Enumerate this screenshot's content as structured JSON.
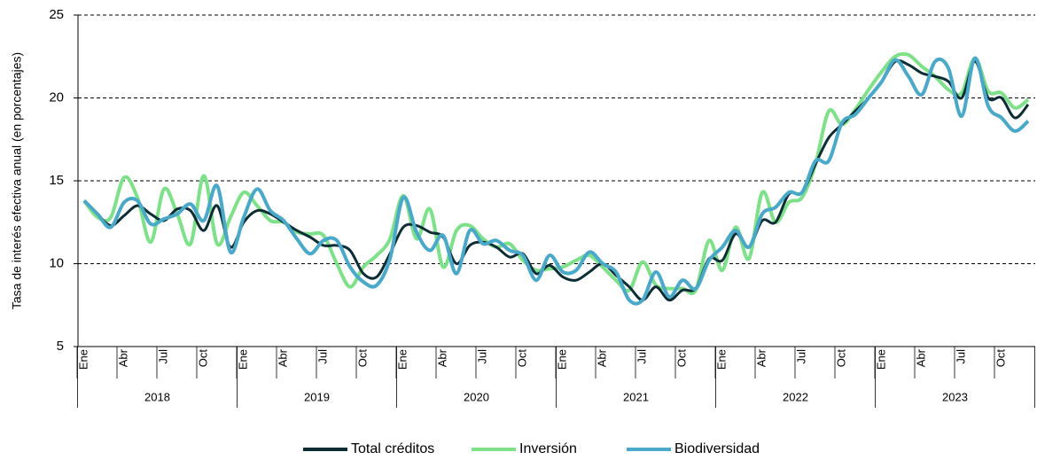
{
  "chart_data": {
    "type": "line",
    "y_label": "Tasa de interés efectiva anual (en porcentajes)",
    "categories": [
      "Ene",
      null,
      null,
      "Abr",
      null,
      null,
      "Jul",
      null,
      null,
      "Oct",
      null,
      null,
      "Ene",
      null,
      null,
      "Abr",
      null,
      null,
      "Jul",
      null,
      null,
      "Oct",
      null,
      null,
      "Ene",
      null,
      null,
      "Abr",
      null,
      null,
      "Jul",
      null,
      null,
      "Oct",
      null,
      null,
      "Ene",
      null,
      null,
      "Abr",
      null,
      null,
      "Jul",
      null,
      null,
      "Oct",
      null,
      null,
      "Ene",
      null,
      null,
      "Abr",
      null,
      null,
      "Jul",
      null,
      null,
      "Oct",
      null,
      null,
      "Ene",
      null,
      null,
      "Abr",
      null,
      null,
      "Jul",
      null,
      null,
      "Oct",
      null,
      null
    ],
    "years": [
      "2018",
      "2019",
      "2020",
      "2021",
      "2022",
      "2023"
    ],
    "ylim": [
      5,
      25
    ],
    "yticks": [
      5,
      10,
      15,
      20,
      25
    ],
    "grid": true,
    "legend": "bottom",
    "series": [
      {
        "name": "Total créditos",
        "color": "#0d2d35",
        "values": [
          13.8,
          13.0,
          12.3,
          12.9,
          13.5,
          13.0,
          12.6,
          13.3,
          13.2,
          12.0,
          13.5,
          11.0,
          12.5,
          13.2,
          13.0,
          12.5,
          12.0,
          11.6,
          11.1,
          11.1,
          10.8,
          9.4,
          9.2,
          10.6,
          12.2,
          12.3,
          11.9,
          11.6,
          10.0,
          11.1,
          11.3,
          11.0,
          10.4,
          10.6,
          9.4,
          9.9,
          9.2,
          9.0,
          9.5,
          10.0,
          9.3,
          8.6,
          7.8,
          8.6,
          7.8,
          8.4,
          8.5,
          10.3,
          10.2,
          11.8,
          11.0,
          12.6,
          12.5,
          14.2,
          14.3,
          16.0,
          17.6,
          18.4,
          19.2,
          20.0,
          21.0,
          22.2,
          22.0,
          21.5,
          21.3,
          21.0,
          20.0,
          22.2,
          20.0,
          20.0,
          18.8,
          19.6
        ]
      },
      {
        "name": "Inversión",
        "color": "#7fe08a",
        "values": [
          13.8,
          12.8,
          12.8,
          15.2,
          14.0,
          11.3,
          14.5,
          13.0,
          11.2,
          15.3,
          11.2,
          12.8,
          14.3,
          13.5,
          12.6,
          12.5,
          11.9,
          11.8,
          11.7,
          10.0,
          8.6,
          9.8,
          10.5,
          11.5,
          14.1,
          11.5,
          13.3,
          9.8,
          12.0,
          12.3,
          11.5,
          11.0,
          11.2,
          10.2,
          9.6,
          9.7,
          9.8,
          10.2,
          10.5,
          9.8,
          9.0,
          8.4,
          10.1,
          8.7,
          8.5,
          8.5,
          8.4,
          11.4,
          9.6,
          12.2,
          10.3,
          14.3,
          12.5,
          13.7,
          14.0,
          16.0,
          19.2,
          18.4,
          19.3,
          20.5,
          21.6,
          22.5,
          22.6,
          21.9,
          21.3,
          20.5,
          20.3,
          22.4,
          20.4,
          20.3,
          19.4,
          19.9
        ]
      },
      {
        "name": "Biodiversidad",
        "color": "#4aa8c8",
        "values": [
          13.8,
          13.0,
          12.2,
          13.7,
          13.8,
          12.4,
          12.7,
          13.0,
          13.6,
          12.6,
          14.7,
          10.7,
          12.8,
          14.5,
          13.2,
          12.6,
          11.5,
          10.6,
          11.4,
          11.4,
          9.8,
          8.9,
          8.7,
          10.3,
          14.0,
          11.9,
          10.8,
          11.7,
          9.4,
          12.0,
          11.2,
          11.4,
          10.8,
          10.5,
          9.0,
          10.5,
          9.5,
          9.6,
          10.7,
          10.0,
          9.5,
          7.8,
          7.8,
          9.5,
          8.0,
          9.0,
          8.5,
          10.2,
          11.0,
          12.0,
          11.0,
          13.0,
          13.4,
          14.3,
          14.3,
          16.2,
          16.2,
          18.5,
          19.0,
          20.0,
          21.0,
          22.3,
          21.3,
          20.2,
          22.2,
          21.8,
          18.9,
          22.4,
          19.5,
          18.8,
          18.0,
          18.6
        ]
      }
    ]
  }
}
